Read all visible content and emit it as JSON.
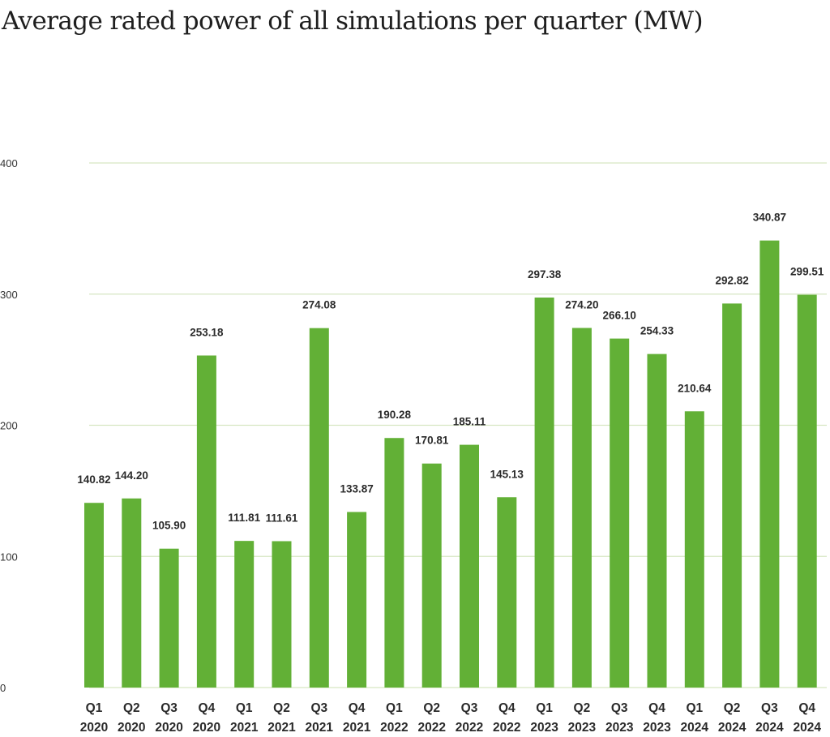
{
  "chart_data": {
    "type": "bar",
    "title": "Average rated power of all simulations per quarter (MW)",
    "xlabel": "",
    "ylabel": "",
    "ylim": [
      0,
      400
    ],
    "grid": true,
    "yticks": [
      "0",
      "100",
      "200",
      "300",
      "400"
    ],
    "ytick_values": [
      0,
      100,
      200,
      300,
      400
    ],
    "categories": [
      [
        "Q1",
        "2020"
      ],
      [
        "Q2",
        "2020"
      ],
      [
        "Q3",
        "2020"
      ],
      [
        "Q4",
        "2020"
      ],
      [
        "Q1",
        "2021"
      ],
      [
        "Q2",
        "2021"
      ],
      [
        "Q3",
        "2021"
      ],
      [
        "Q4",
        "2021"
      ],
      [
        "Q1",
        "2022"
      ],
      [
        "Q2",
        "2022"
      ],
      [
        "Q3",
        "2022"
      ],
      [
        "Q4",
        "2022"
      ],
      [
        "Q1",
        "2023"
      ],
      [
        "Q2",
        "2023"
      ],
      [
        "Q3",
        "2023"
      ],
      [
        "Q4",
        "2023"
      ],
      [
        "Q1",
        "2024"
      ],
      [
        "Q2",
        "2024"
      ],
      [
        "Q3",
        "2024"
      ],
      [
        "Q4",
        "2024"
      ]
    ],
    "values": [
      140.82,
      144.2,
      105.9,
      253.18,
      111.81,
      111.61,
      274.08,
      133.87,
      190.28,
      170.81,
      185.11,
      145.13,
      297.38,
      274.2,
      266.1,
      254.33,
      210.64,
      292.82,
      340.87,
      299.51
    ],
    "value_labels": [
      "140.82",
      "144.20",
      "105.90",
      "253.18",
      "111.81",
      "111.61",
      "274.08",
      "133.87",
      "190.28",
      "170.81",
      "185.11",
      "145.13",
      "297.38",
      "274.20",
      "266.10",
      "254.33",
      "210.64",
      "292.82",
      "340.87",
      "299.51"
    ],
    "colors": {
      "bar": "#62b036",
      "grid": "#d6e6c2",
      "text": "#2a2a2a"
    }
  }
}
